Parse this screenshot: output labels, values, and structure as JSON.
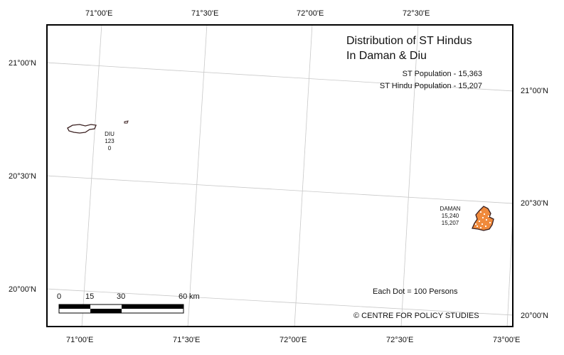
{
  "map": {
    "title_line1": "Distribution of ST Hindus",
    "title_line2": "In Daman & Diu",
    "st_population": "ST Population - 15,363",
    "st_hindu_population": "ST Hindu Population - 15,207",
    "dot_legend": "Each Dot = 100 Persons",
    "credit": "© CENTRE FOR POLICY STUDIES"
  },
  "places": {
    "diu": {
      "name": "DIU",
      "st_population": "123",
      "st_hindu": "0"
    },
    "daman": {
      "name": "DAMAN",
      "st_population": "15,240",
      "st_hindu": "15,207"
    }
  },
  "graticule": {
    "top_labels": [
      "71°00'E",
      "71°30'E",
      "72°00'E",
      "72°30'E"
    ],
    "bottom_labels": [
      "71°00'E",
      "71°30'E",
      "72°00'E",
      "72°30'E",
      "73°00'E"
    ],
    "left_labels": [
      "21°00'N",
      "20°30'N",
      "20°00'N"
    ],
    "right_labels": [
      "21°00'N",
      "20°30'N",
      "20°00'N"
    ]
  },
  "scale_bar": {
    "ticks": [
      "0",
      "15",
      "30",
      "60"
    ],
    "unit": "km"
  },
  "colors": {
    "daman_fill": "#f08a3c",
    "outline": "#3a2020",
    "grid": "#c8c8c8"
  }
}
